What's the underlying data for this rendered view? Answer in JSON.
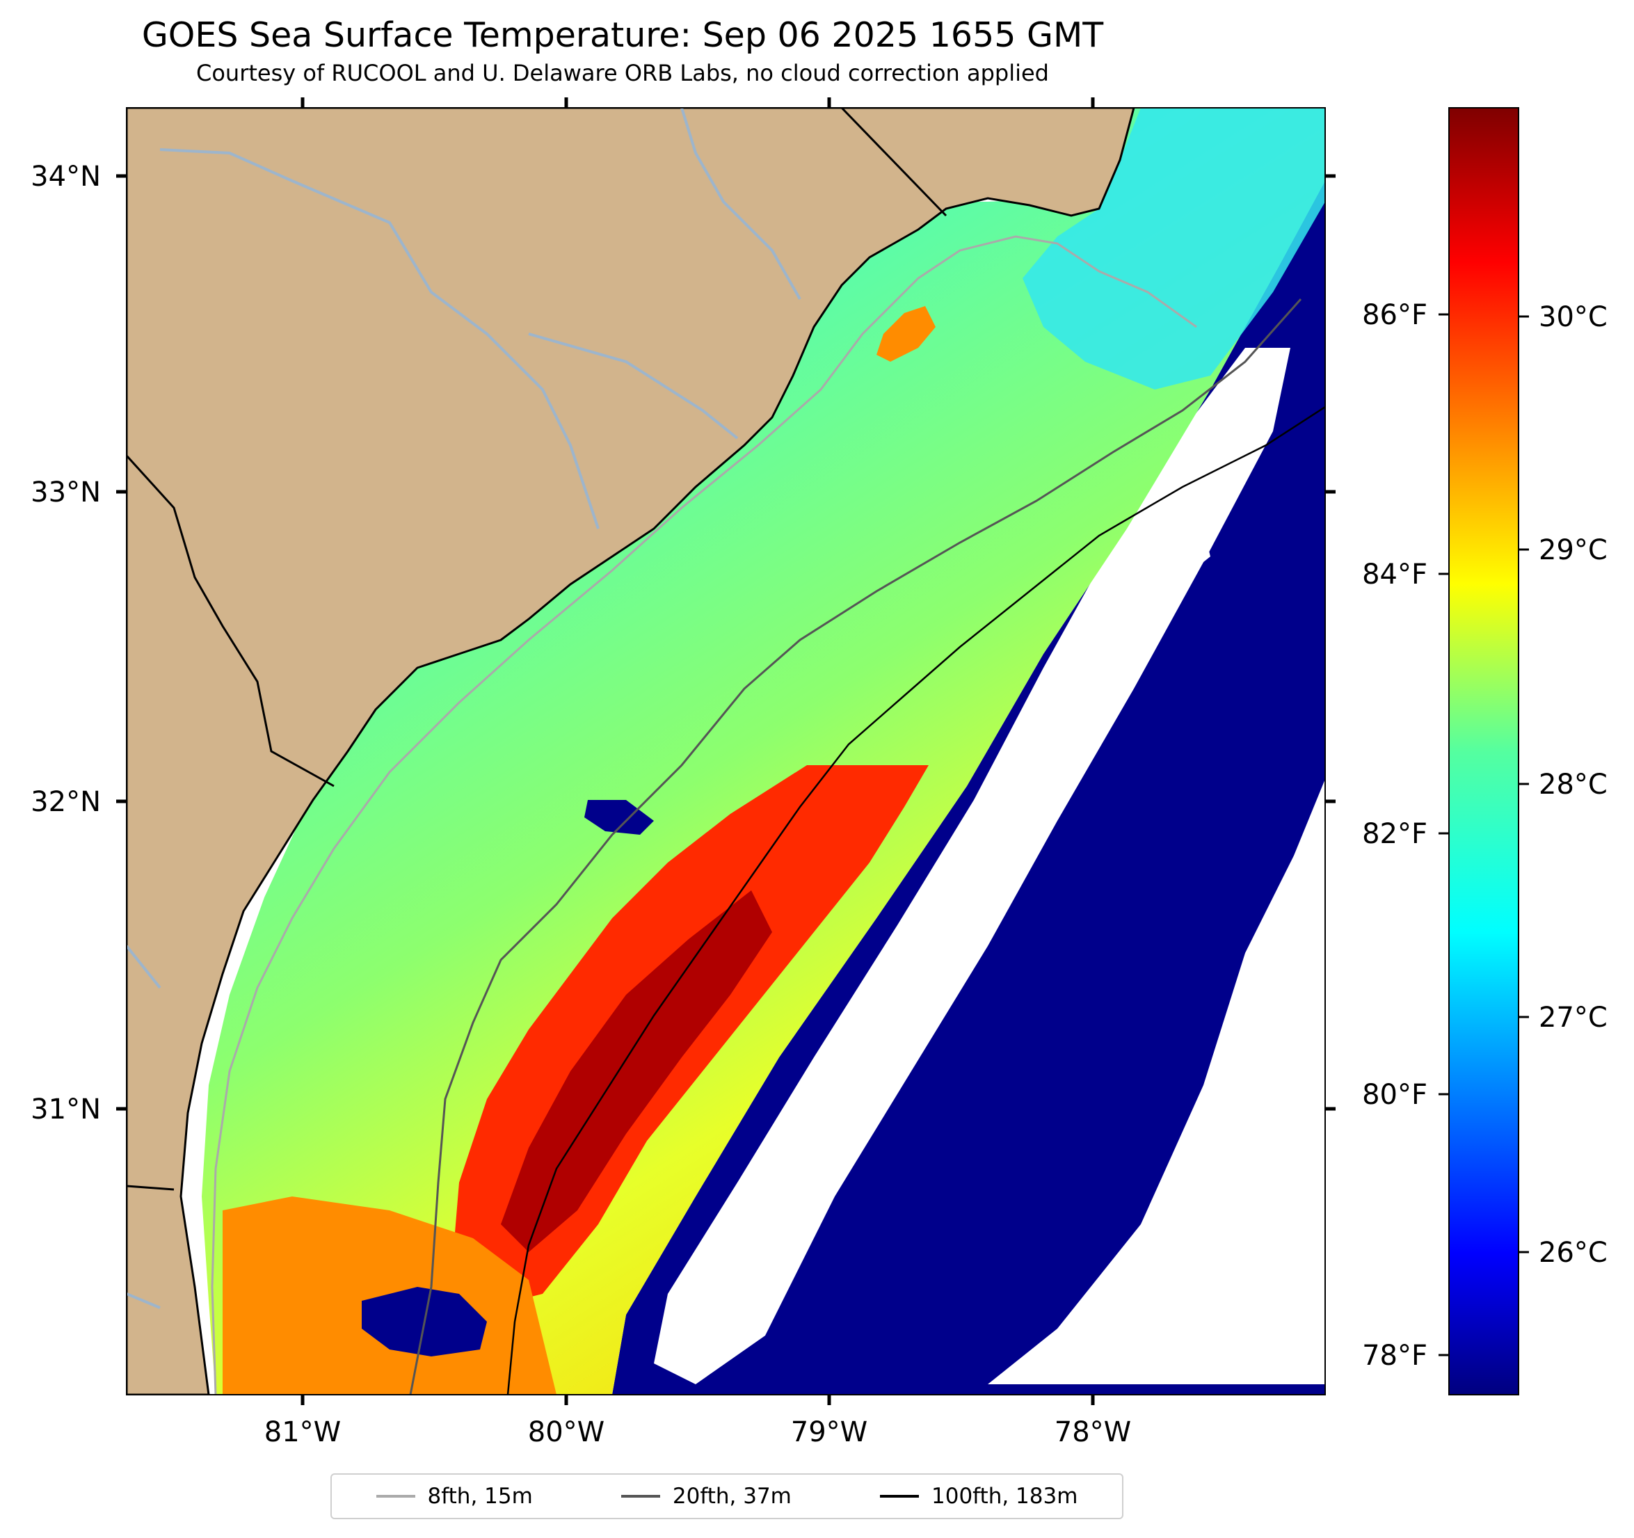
{
  "title": "GOES Sea Surface Temperature: Sep 06 2025 1655 GMT",
  "subtitle": "Courtesy of RUCOOL and U. Delaware ORB Labs, no cloud correction applied",
  "map": {
    "lon_ticks": [
      "81°W",
      "80°W",
      "79°W",
      "78°W"
    ],
    "lat_ticks": [
      "34°N",
      "33°N",
      "32°N",
      "31°N"
    ],
    "colors": {
      "land": "#d2b48c",
      "no_data": "#ffffff",
      "cold": "#00008b",
      "river": "#9db5cc"
    }
  },
  "colorbar": {
    "fahrenheit_labels": [
      "86°F",
      "84°F",
      "82°F",
      "80°F",
      "78°F"
    ],
    "celsius_labels": [
      "30°C",
      "29°C",
      "28°C",
      "27°C",
      "26°C"
    ],
    "colormap": "jet"
  },
  "legend": {
    "items": [
      {
        "label": "8fth, 15m",
        "color": "#aaaaaa"
      },
      {
        "label": "20fth, 37m",
        "color": "#555555"
      },
      {
        "label": "100fth, 183m",
        "color": "#000000"
      }
    ]
  }
}
